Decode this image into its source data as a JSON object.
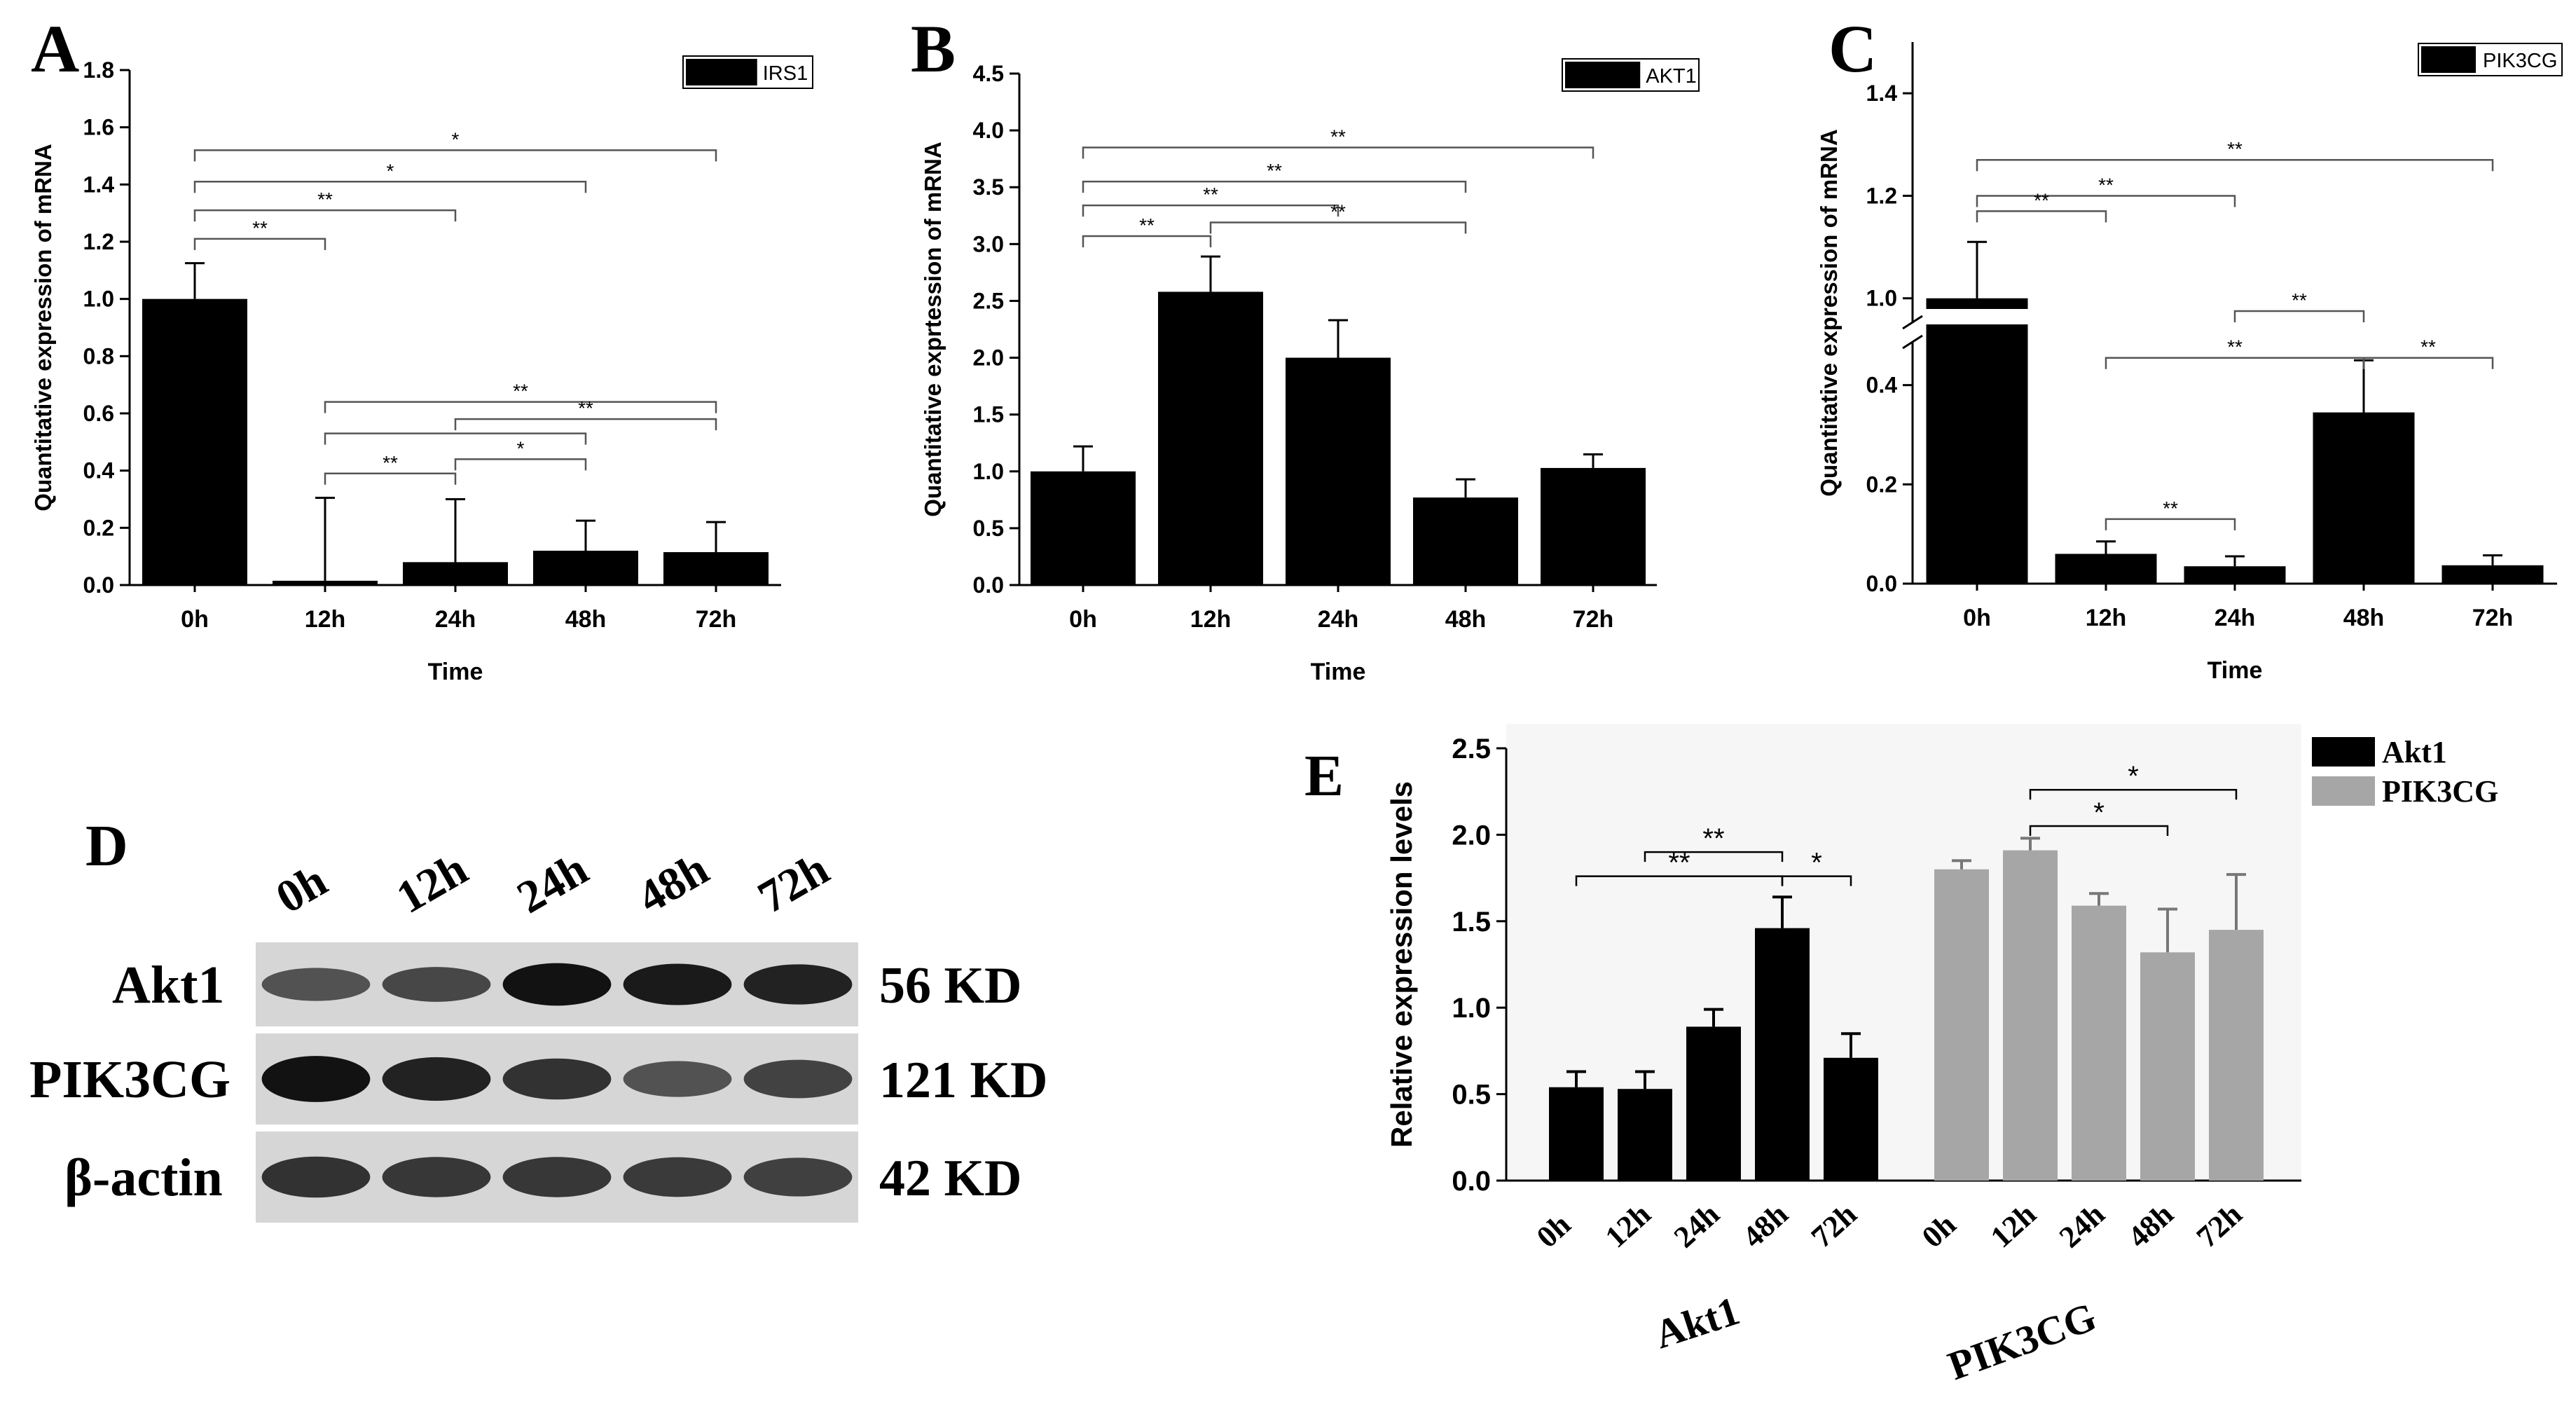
{
  "panels": {
    "A": {
      "letter": "A"
    },
    "B": {
      "letter": "B"
    },
    "C": {
      "letter": "C"
    },
    "D": {
      "letter": "D"
    },
    "E": {
      "letter": "E"
    }
  },
  "chart_data": [
    {
      "id": "A",
      "type": "bar",
      "categories": [
        "0h",
        "12h",
        "24h",
        "48h",
        "72h"
      ],
      "values": [
        1.0,
        0.015,
        0.08,
        0.12,
        0.115
      ],
      "errors": [
        0.125,
        0.29,
        0.22,
        0.105,
        0.105
      ],
      "legend": [
        "IRS1"
      ],
      "xlabel": "Time",
      "ylabel": "Quantitative expression of mRNA",
      "ylim": [
        0,
        1.8
      ],
      "yticks": [
        "0.0",
        "0.2",
        "0.4",
        "0.6",
        "0.8",
        "1.0",
        "1.2",
        "1.4",
        "1.6",
        "1.8"
      ],
      "brackets": [
        {
          "from": 0,
          "to": 4,
          "level": 1.52,
          "label": "*"
        },
        {
          "from": 0,
          "to": 3,
          "level": 1.41,
          "label": "*"
        },
        {
          "from": 0,
          "to": 2,
          "level": 1.31,
          "label": "**"
        },
        {
          "from": 0,
          "to": 1,
          "level": 1.21,
          "label": "**"
        },
        {
          "from": 1,
          "to": 4,
          "level": 0.64,
          "label": "**"
        },
        {
          "from": 1,
          "to": 3,
          "level": 0.53,
          "label": ""
        },
        {
          "from": 2,
          "to": 4,
          "level": 0.58,
          "label": "**"
        },
        {
          "from": 1,
          "to": 2,
          "level": 0.39,
          "label": "**"
        },
        {
          "from": 2,
          "to": 3,
          "level": 0.44,
          "label": "*"
        }
      ]
    },
    {
      "id": "B",
      "type": "bar",
      "categories": [
        "0h",
        "12h",
        "24h",
        "48h",
        "72h"
      ],
      "values": [
        1.0,
        2.58,
        2.0,
        0.77,
        1.03
      ],
      "errors": [
        0.22,
        0.31,
        0.33,
        0.16,
        0.12
      ],
      "legend": [
        "AKT1"
      ],
      "xlabel": "Time",
      "ylabel": "Quantitative exprtession of mRNA",
      "ylim": [
        0,
        4.5
      ],
      "yticks": [
        "0.0",
        "0.5",
        "1.0",
        "1.5",
        "2.0",
        "2.5",
        "3.0",
        "3.5",
        "4.0",
        "4.5"
      ],
      "brackets": [
        {
          "from": 0,
          "to": 4,
          "level": 3.85,
          "label": "**"
        },
        {
          "from": 0,
          "to": 3,
          "level": 3.55,
          "label": "**"
        },
        {
          "from": 0,
          "to": 2,
          "level": 3.34,
          "label": "**"
        },
        {
          "from": 1,
          "to": 3,
          "level": 3.19,
          "label": "**"
        },
        {
          "from": 0,
          "to": 1,
          "level": 3.07,
          "label": "**"
        }
      ]
    },
    {
      "id": "C",
      "type": "bar",
      "broken_axis": true,
      "categories": [
        "0h",
        "12h",
        "24h",
        "48h",
        "72h"
      ],
      "values": [
        1.0,
        0.06,
        0.035,
        0.345,
        0.037
      ],
      "errors": [
        0.11,
        0.025,
        0.02,
        0.105,
        0.02
      ],
      "legend": [
        "PIK3CG"
      ],
      "xlabel": "Time",
      "ylabel": "Quantitative expression of mRNA",
      "ylim": [
        0,
        1.45
      ],
      "lower_ylim": [
        0,
        0.48
      ],
      "upper_ylim": [
        0.96,
        1.5
      ],
      "yticks": [
        "0.0",
        "0.2",
        "0.4",
        "1.0",
        "1.2",
        "1.4"
      ],
      "brackets": [
        {
          "from": 0,
          "to": 4,
          "level": 1.27,
          "label": "**"
        },
        {
          "from": 0,
          "to": 2,
          "level": 1.2,
          "label": "**"
        },
        {
          "from": 0,
          "to": 1,
          "level": 1.17,
          "label": "**"
        },
        {
          "from": 2,
          "to": 3,
          "level": 0.975,
          "label": "**"
        },
        {
          "from": 1,
          "to": 3,
          "level": 0.455,
          "label": "**"
        },
        {
          "from": 3,
          "to": 4,
          "level": 0.455,
          "label": "**"
        },
        {
          "from": 1,
          "to": 2,
          "level": 0.13,
          "label": "**"
        }
      ]
    },
    {
      "id": "E",
      "type": "bar",
      "group_labels": [
        "Akt1",
        "PIK3CG"
      ],
      "categories": [
        "0h",
        "12h",
        "24h",
        "48h",
        "72h"
      ],
      "series": [
        {
          "name": "Akt1",
          "color": "#000000",
          "values": [
            0.54,
            0.53,
            0.89,
            1.46,
            0.71
          ],
          "errors": [
            0.09,
            0.1,
            0.1,
            0.18,
            0.14
          ]
        },
        {
          "name": "PIK3CG",
          "color": "#a6a6a6",
          "values": [
            1.8,
            1.91,
            1.59,
            1.32,
            1.45
          ],
          "errors": [
            0.05,
            0.07,
            0.07,
            0.25,
            0.32
          ]
        }
      ],
      "xlabel": "",
      "ylabel": "Relative expression levels",
      "ylim": [
        0,
        2.5
      ],
      "yticks": [
        "0.0",
        "0.5",
        "1.0",
        "1.5",
        "2.0",
        "2.5"
      ],
      "brackets": [
        {
          "series": 0,
          "from": 0,
          "to": 3,
          "level": 1.76,
          "label": "**"
        },
        {
          "series": 0,
          "from": 1,
          "to": 3,
          "level": 1.9,
          "label": "**"
        },
        {
          "series": 0,
          "from": 3,
          "to": 4,
          "level": 1.76,
          "label": "*"
        },
        {
          "series": 1,
          "from": 1,
          "to": 4,
          "level": 2.26,
          "label": "*"
        },
        {
          "series": 1,
          "from": 1,
          "to": 3,
          "level": 2.05,
          "label": "*"
        }
      ]
    }
  ],
  "blot": {
    "lanes": [
      "0h",
      "12h",
      "24h",
      "48h",
      "72h"
    ],
    "rows": [
      {
        "label": "Akt1",
        "size": "56 KD",
        "intensity": [
          0.55,
          0.62,
          0.95,
          0.9,
          0.85
        ]
      },
      {
        "label": "PIK3CG",
        "size": "121 KD",
        "intensity": [
          0.95,
          0.85,
          0.75,
          0.55,
          0.65
        ]
      },
      {
        "label": "β-actin",
        "size": "42 KD",
        "intensity": [
          0.75,
          0.72,
          0.72,
          0.7,
          0.66
        ]
      }
    ]
  }
}
